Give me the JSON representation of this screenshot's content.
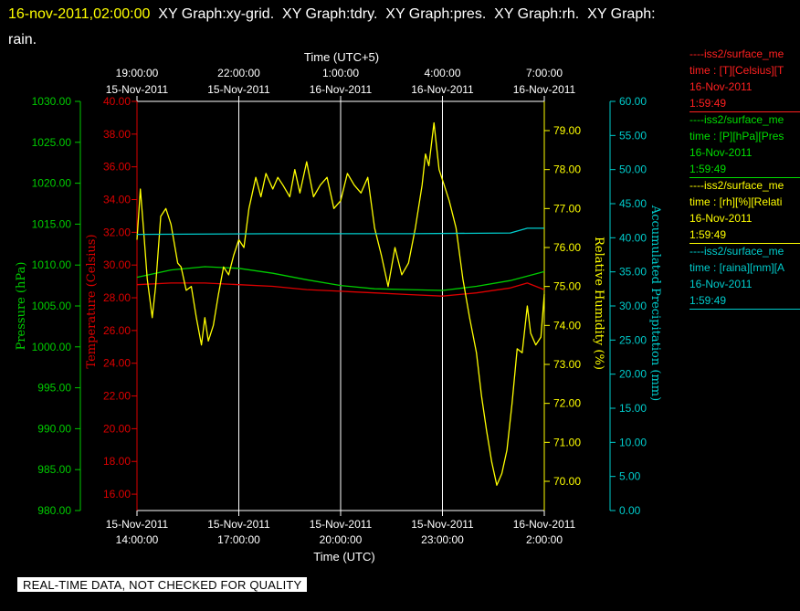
{
  "header": {
    "timestamp": "16-nov-2011,02:00:00",
    "graphs": [
      "XY Graph:xy-grid.",
      "XY Graph:tdry.",
      "XY Graph:pres.",
      "XY Graph:rh.",
      "XY Graph:",
      "rain."
    ]
  },
  "colors": {
    "pressure": "#00cc00",
    "temperature": "#dd0000",
    "humidity": "#ffff00",
    "precip": "#00cccc",
    "grid": "#ffffff"
  },
  "legend": [
    {
      "series": "----iss2/surface_me",
      "line1": "time : [T][Celsius][T",
      "date": "16-Nov-2011",
      "time": "1:59:49",
      "color": "#ff2020"
    },
    {
      "series": "----iss2/surface_me",
      "line1": "time : [P][hPa][Pres",
      "date": "16-Nov-2011",
      "time": "1:59:49",
      "color": "#00dd00"
    },
    {
      "series": "----iss2/surface_me",
      "line1": "time : [rh][%][Relati",
      "date": "16-Nov-2011",
      "time": "1:59:49",
      "color": "#ffff00"
    },
    {
      "series": "----iss2/surface_me",
      "line1": "time : [raina][mm][A",
      "date": "16-Nov-2011",
      "time": "1:59:49",
      "color": "#00cccc"
    }
  ],
  "notice": "REAL-TIME DATA, NOT CHECKED FOR QUALITY",
  "chart_data": {
    "type": "line",
    "grid": true,
    "top_axis": {
      "title": "Time (UTC+5)",
      "ticks": [
        {
          "time": "19:00:00",
          "date": "15-Nov-2011"
        },
        {
          "time": "22:00:00",
          "date": "15-Nov-2011"
        },
        {
          "time": "1:00:00",
          "date": "16-Nov-2011"
        },
        {
          "time": "4:00:00",
          "date": "16-Nov-2011"
        },
        {
          "time": "7:00:00",
          "date": "16-Nov-2011"
        }
      ]
    },
    "bottom_axis": {
      "title": "Time (UTC)",
      "range": [
        "15-Nov-2011 14:00",
        "16-Nov-2011 02:00"
      ],
      "ticks": [
        {
          "date": "15-Nov-2011",
          "time": "14:00:00"
        },
        {
          "date": "15-Nov-2011",
          "time": "17:00:00"
        },
        {
          "date": "15-Nov-2011",
          "time": "20:00:00"
        },
        {
          "date": "15-Nov-2011",
          "time": "23:00:00"
        },
        {
          "date": "16-Nov-2011",
          "time": "2:00:00"
        }
      ]
    },
    "y_axes": {
      "pressure": {
        "label": "Pressure (hPa)",
        "range": [
          980,
          1030
        ],
        "ticks": [
          "980.00",
          "985.00",
          "990.00",
          "995.00",
          "1000.00",
          "1005.00",
          "1010.00",
          "1015.00",
          "1020.00",
          "1025.00",
          "1030.00"
        ]
      },
      "temperature": {
        "label": "Temperature (Celsius)",
        "range": [
          15,
          40
        ],
        "ticks": [
          "16.00",
          "18.00",
          "20.00",
          "22.00",
          "24.00",
          "26.00",
          "28.00",
          "30.00",
          "32.00",
          "34.00",
          "36.00",
          "38.00",
          "40.00"
        ]
      },
      "humidity": {
        "label": "Relative Humidity (%)",
        "range": [
          69.25,
          79.75
        ],
        "ticks": [
          "70.00",
          "71.00",
          "72.00",
          "73.00",
          "74.00",
          "75.00",
          "76.00",
          "77.00",
          "78.00",
          "79.00"
        ]
      },
      "precip": {
        "label": "Accumulated Precipitation (mm)",
        "range": [
          0,
          60
        ],
        "ticks": [
          "0.00",
          "5.00",
          "10.00",
          "15.00",
          "20.00",
          "25.00",
          "30.00",
          "35.00",
          "40.00",
          "45.00",
          "50.00",
          "55.00",
          "60.00"
        ]
      }
    },
    "series": [
      {
        "name": "temperature",
        "axis": "temperature",
        "x_hours": [
          0,
          1,
          2,
          3,
          4,
          5,
          6,
          7,
          8,
          9,
          10,
          11,
          11.5,
          12
        ],
        "values": [
          28.8,
          28.9,
          28.9,
          28.8,
          28.7,
          28.5,
          28.4,
          28.3,
          28.2,
          28.1,
          28.3,
          28.6,
          28.9,
          28.5
        ]
      },
      {
        "name": "pressure",
        "axis": "pressure",
        "x_hours": [
          0,
          1,
          2,
          3,
          4,
          5,
          6,
          7,
          8,
          9,
          10,
          11,
          12
        ],
        "values": [
          1008.5,
          1009.4,
          1009.8,
          1009.6,
          1009.0,
          1008.2,
          1007.5,
          1007.1,
          1007.0,
          1006.9,
          1007.4,
          1008.1,
          1009.2
        ]
      },
      {
        "name": "humidity",
        "axis": "humidity",
        "x_hours": [
          0,
          0.1,
          0.2,
          0.3,
          0.45,
          0.55,
          0.7,
          0.85,
          1.0,
          1.2,
          1.3,
          1.45,
          1.6,
          1.75,
          1.9,
          2.0,
          2.1,
          2.25,
          2.4,
          2.55,
          2.7,
          2.85,
          3.0,
          3.15,
          3.3,
          3.5,
          3.65,
          3.8,
          4.0,
          4.15,
          4.3,
          4.5,
          4.65,
          4.8,
          5.0,
          5.2,
          5.4,
          5.6,
          5.8,
          6.0,
          6.2,
          6.4,
          6.6,
          6.8,
          7.0,
          7.2,
          7.4,
          7.6,
          7.8,
          8.0,
          8.2,
          8.4,
          8.5,
          8.6,
          8.75,
          8.9,
          9.05,
          9.2,
          9.4,
          9.6,
          9.8,
          10.0,
          10.15,
          10.3,
          10.45,
          10.6,
          10.75,
          10.9,
          11.05,
          11.2,
          11.35,
          11.5,
          11.6,
          11.75,
          11.9,
          12.0
        ],
        "values": [
          76.2,
          77.5,
          76.4,
          75.2,
          74.2,
          75.0,
          76.8,
          77.0,
          76.6,
          75.6,
          75.5,
          74.9,
          75.0,
          74.2,
          73.5,
          74.2,
          73.6,
          74.0,
          74.8,
          75.5,
          75.3,
          75.8,
          76.2,
          76.0,
          77.0,
          77.8,
          77.3,
          77.9,
          77.5,
          77.8,
          77.6,
          77.3,
          78.0,
          77.4,
          78.2,
          77.3,
          77.6,
          77.8,
          77.0,
          77.2,
          77.9,
          77.6,
          77.4,
          77.8,
          76.5,
          75.8,
          75.0,
          76.0,
          75.3,
          75.6,
          76.5,
          77.6,
          78.4,
          78.1,
          79.2,
          78.0,
          77.6,
          77.2,
          76.5,
          75.2,
          74.2,
          73.3,
          72.2,
          71.3,
          70.5,
          69.9,
          70.2,
          70.8,
          72.0,
          73.4,
          73.3,
          74.5,
          73.8,
          73.5,
          73.7,
          74.8
        ]
      },
      {
        "name": "precip",
        "axis": "precip",
        "x_hours": [
          0,
          4,
          8,
          11,
          11.5,
          12
        ],
        "values": [
          40.5,
          40.6,
          40.6,
          40.7,
          41.4,
          41.4
        ]
      }
    ]
  }
}
